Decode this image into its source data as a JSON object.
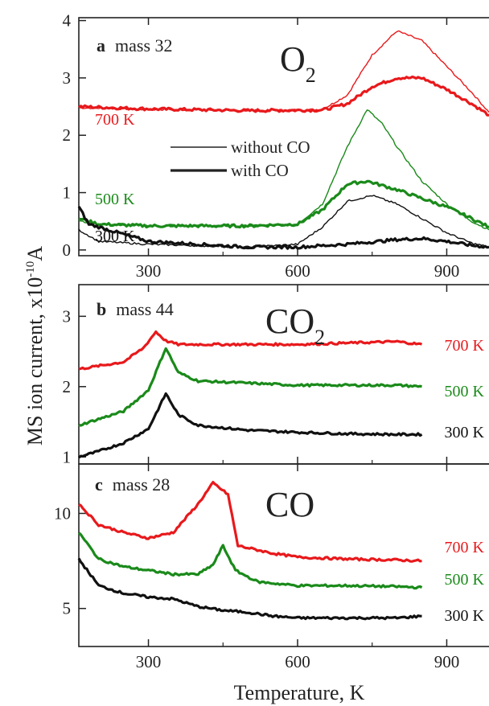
{
  "figure": {
    "ylabel": "MS ion current, x10",
    "ylabel_exp": "-10",
    "ylabel_unit": "A",
    "xlabel": "Temperature, K",
    "legend": [
      "without CO",
      "with CO"
    ]
  },
  "colors": {
    "700K": "#e8191c",
    "500K": "#1a8a1a",
    "300K": "#111111"
  },
  "chart_data": [
    {
      "type": "line",
      "panel": "a",
      "title": "mass 32",
      "species": "O",
      "species_sub": "2",
      "xlim": [
        160,
        985
      ],
      "ylim": [
        -0.1,
        4.05
      ],
      "xticks": [
        300,
        600,
        900
      ],
      "yticks": [
        0,
        1,
        2,
        3,
        4
      ],
      "temperature_labels": [
        "700 K",
        "500 K",
        "300 K"
      ],
      "series": [
        {
          "label": "700 K",
          "style": "without CO",
          "x": [
            160,
            300,
            500,
            650,
            700,
            750,
            800,
            850,
            900,
            950,
            985
          ],
          "y": [
            2.48,
            2.45,
            2.43,
            2.45,
            2.7,
            3.4,
            3.82,
            3.65,
            3.2,
            2.75,
            2.4
          ]
        },
        {
          "label": "700 K",
          "style": "with CO",
          "x": [
            160,
            300,
            500,
            650,
            700,
            750,
            800,
            850,
            900,
            950,
            985
          ],
          "y": [
            2.5,
            2.46,
            2.43,
            2.44,
            2.55,
            2.85,
            3.0,
            3.0,
            2.8,
            2.55,
            2.35
          ]
        },
        {
          "label": "500 K",
          "style": "without CO",
          "x": [
            160,
            200,
            300,
            500,
            600,
            650,
            700,
            740,
            770,
            800,
            850,
            900,
            950,
            985
          ],
          "y": [
            0.5,
            0.45,
            0.42,
            0.42,
            0.45,
            0.8,
            1.8,
            2.45,
            2.2,
            1.8,
            1.2,
            0.8,
            0.5,
            0.35
          ]
        },
        {
          "label": "500 K",
          "style": "with CO",
          "x": [
            160,
            200,
            300,
            500,
            600,
            650,
            700,
            740,
            800,
            850,
            900,
            950,
            985
          ],
          "y": [
            0.55,
            0.45,
            0.42,
            0.42,
            0.45,
            0.7,
            1.15,
            1.2,
            1.05,
            0.9,
            0.75,
            0.55,
            0.4
          ]
        },
        {
          "label": "300 K",
          "style": "without CO",
          "x": [
            160,
            200,
            300,
            500,
            600,
            650,
            700,
            750,
            800,
            850,
            900,
            950,
            985
          ],
          "y": [
            0.35,
            0.15,
            0.1,
            0.05,
            0.1,
            0.4,
            0.85,
            0.95,
            0.8,
            0.55,
            0.3,
            0.12,
            0.05
          ]
        },
        {
          "label": "300 K",
          "style": "with CO",
          "x": [
            160,
            180,
            300,
            500,
            600,
            700,
            800,
            850,
            900,
            950,
            985
          ],
          "y": [
            0.75,
            0.45,
            0.15,
            0.05,
            0.05,
            0.1,
            0.18,
            0.2,
            0.15,
            0.08,
            0.05
          ]
        }
      ]
    },
    {
      "type": "line",
      "panel": "b",
      "title": "mass 44",
      "species": "CO",
      "species_sub": "2",
      "xlim": [
        160,
        985
      ],
      "ylim": [
        0.9,
        3.45
      ],
      "xticks": [
        300,
        600,
        900
      ],
      "yticks": [
        1,
        2,
        3
      ],
      "temperature_labels": [
        "700 K",
        "500 K",
        "300 K"
      ],
      "series": [
        {
          "label": "700 K",
          "style": "with CO",
          "x": [
            160,
            250,
            290,
            315,
            335,
            360,
            400,
            500,
            600,
            700,
            800,
            850
          ],
          "y": [
            2.25,
            2.35,
            2.55,
            2.78,
            2.65,
            2.6,
            2.6,
            2.6,
            2.6,
            2.62,
            2.64,
            2.6
          ]
        },
        {
          "label": "500 K",
          "style": "with CO",
          "x": [
            160,
            250,
            300,
            335,
            360,
            400,
            500,
            600,
            700,
            800,
            850
          ],
          "y": [
            1.45,
            1.65,
            1.95,
            2.55,
            2.2,
            2.08,
            2.05,
            2.02,
            2.02,
            2.02,
            2.0
          ]
        },
        {
          "label": "300 K",
          "style": "with CO",
          "x": [
            160,
            200,
            250,
            300,
            335,
            360,
            400,
            500,
            600,
            700,
            800,
            850
          ],
          "y": [
            1.0,
            1.08,
            1.2,
            1.4,
            1.9,
            1.6,
            1.45,
            1.38,
            1.35,
            1.33,
            1.32,
            1.32
          ]
        }
      ]
    },
    {
      "type": "line",
      "panel": "c",
      "title": "mass 28",
      "species": "CO",
      "species_sub": "",
      "xlim": [
        160,
        985
      ],
      "ylim": [
        3.0,
        12.6
      ],
      "xticks": [
        300,
        600,
        900
      ],
      "yticks": [
        5,
        10
      ],
      "temperature_labels": [
        "700 K",
        "500 K",
        "300 K"
      ],
      "series": [
        {
          "label": "700 K",
          "style": "with CO",
          "x": [
            160,
            200,
            250,
            300,
            350,
            400,
            430,
            460,
            480,
            550,
            600,
            700,
            800,
            850
          ],
          "y": [
            10.5,
            9.4,
            9.0,
            8.7,
            9.0,
            10.5,
            11.6,
            11.0,
            8.3,
            7.9,
            7.7,
            7.6,
            7.55,
            7.5
          ]
        },
        {
          "label": "500 K",
          "style": "with CO",
          "x": [
            160,
            200,
            250,
            300,
            350,
            400,
            430,
            450,
            475,
            520,
            600,
            700,
            800,
            850
          ],
          "y": [
            9.0,
            7.6,
            7.2,
            7.0,
            6.8,
            6.8,
            7.3,
            8.3,
            7.0,
            6.4,
            6.2,
            6.2,
            6.15,
            6.1
          ]
        },
        {
          "label": "300 K",
          "style": "with CO",
          "x": [
            160,
            200,
            250,
            300,
            350,
            400,
            450,
            500,
            550,
            600,
            700,
            800,
            850
          ],
          "y": [
            7.6,
            6.2,
            5.8,
            5.6,
            5.5,
            5.1,
            4.9,
            4.8,
            4.6,
            4.5,
            4.5,
            4.5,
            4.6
          ]
        }
      ]
    }
  ]
}
